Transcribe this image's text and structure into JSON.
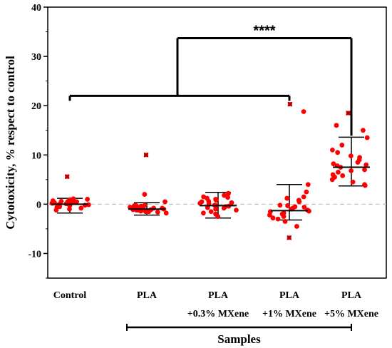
{
  "chart_data": {
    "type": "scatter",
    "ylabel": "Cytotoxicity, % respect to control",
    "xlabel": "Samples",
    "ylim": [
      -15,
      40
    ],
    "yticks": [
      -10,
      0,
      10,
      20,
      30,
      40
    ],
    "zero_reference_line": true,
    "marker_color": "#ff0000",
    "outlier_marker": "x-square",
    "categories": [
      {
        "line1": "Control",
        "line2": ""
      },
      {
        "line1": "PLA",
        "line2": ""
      },
      {
        "line1": "PLA",
        "line2": "+0.3% MXene"
      },
      {
        "line1": "PLA",
        "line2": "+1% MXene"
      },
      {
        "line1": "PLA",
        "line2": "+5% MXene"
      }
    ],
    "groups": [
      {
        "points": [
          -1.0,
          0.8,
          0.3,
          -0.5,
          0.5,
          0.9,
          0.2,
          -0.2,
          1.1,
          0.1,
          0.6,
          -0.8,
          0.4,
          0.7,
          -0.3,
          0.0,
          0.5,
          -1.2,
          0.3,
          0.8,
          -0.6,
          0.2,
          1.0,
          -0.1
        ],
        "outliers": [
          5.6
        ],
        "median": 0.0,
        "lower": -1.8,
        "upper": 1.2
      },
      {
        "points": [
          2.0,
          0.5,
          -0.3,
          -1.0,
          -1.5,
          -0.8,
          -1.2,
          -0.5,
          -1.8,
          -0.2,
          -0.9,
          -1.3,
          -0.7,
          -1.1,
          -1.6,
          -0.4,
          -1.4,
          -0.6,
          -1.0,
          -1.2,
          -0.8,
          -1.5,
          -0.3,
          -1.1
        ],
        "outliers": [
          10.0
        ],
        "median": -1.0,
        "lower": -2.2,
        "upper": 0.3
      },
      {
        "points": [
          2.2,
          1.8,
          1.5,
          1.2,
          0.8,
          0.5,
          0.2,
          -0.2,
          -0.5,
          -0.8,
          -1.2,
          -1.5,
          -2.0,
          -2.5,
          1.0,
          0.3,
          -0.3,
          -1.0,
          0.6,
          -0.7,
          1.4,
          -1.8,
          0.1,
          -0.4
        ],
        "outliers": [],
        "median": -0.3,
        "lower": -2.8,
        "upper": 2.4
      },
      {
        "points": [
          18.8,
          4.0,
          2.5,
          1.5,
          0.5,
          -0.5,
          -1.0,
          -1.5,
          -2.0,
          -2.5,
          -3.0,
          -3.5,
          -4.5,
          0.8,
          -0.2,
          -1.2,
          -2.2,
          -1.8,
          -0.8,
          1.2,
          -2.8,
          -1.4,
          -0.3,
          -0.6
        ],
        "outliers": [
          20.3,
          -6.8
        ],
        "median": -1.3,
        "lower": -3.2,
        "upper": 4.0
      },
      {
        "points": [
          16.0,
          15.0,
          13.5,
          12.0,
          11.0,
          10.5,
          9.5,
          9.0,
          8.5,
          8.0,
          7.5,
          7.0,
          6.5,
          6.0,
          5.5,
          5.0,
          4.5,
          4.0,
          3.8,
          7.8,
          6.8,
          8.2,
          5.8,
          9.8
        ],
        "outliers": [
          18.5
        ],
        "median": 7.5,
        "lower": 3.7,
        "upper": 13.6
      }
    ],
    "significance": {
      "label": "****",
      "left_bracket_y": 22,
      "right_bracket_y": 33.7
    }
  }
}
